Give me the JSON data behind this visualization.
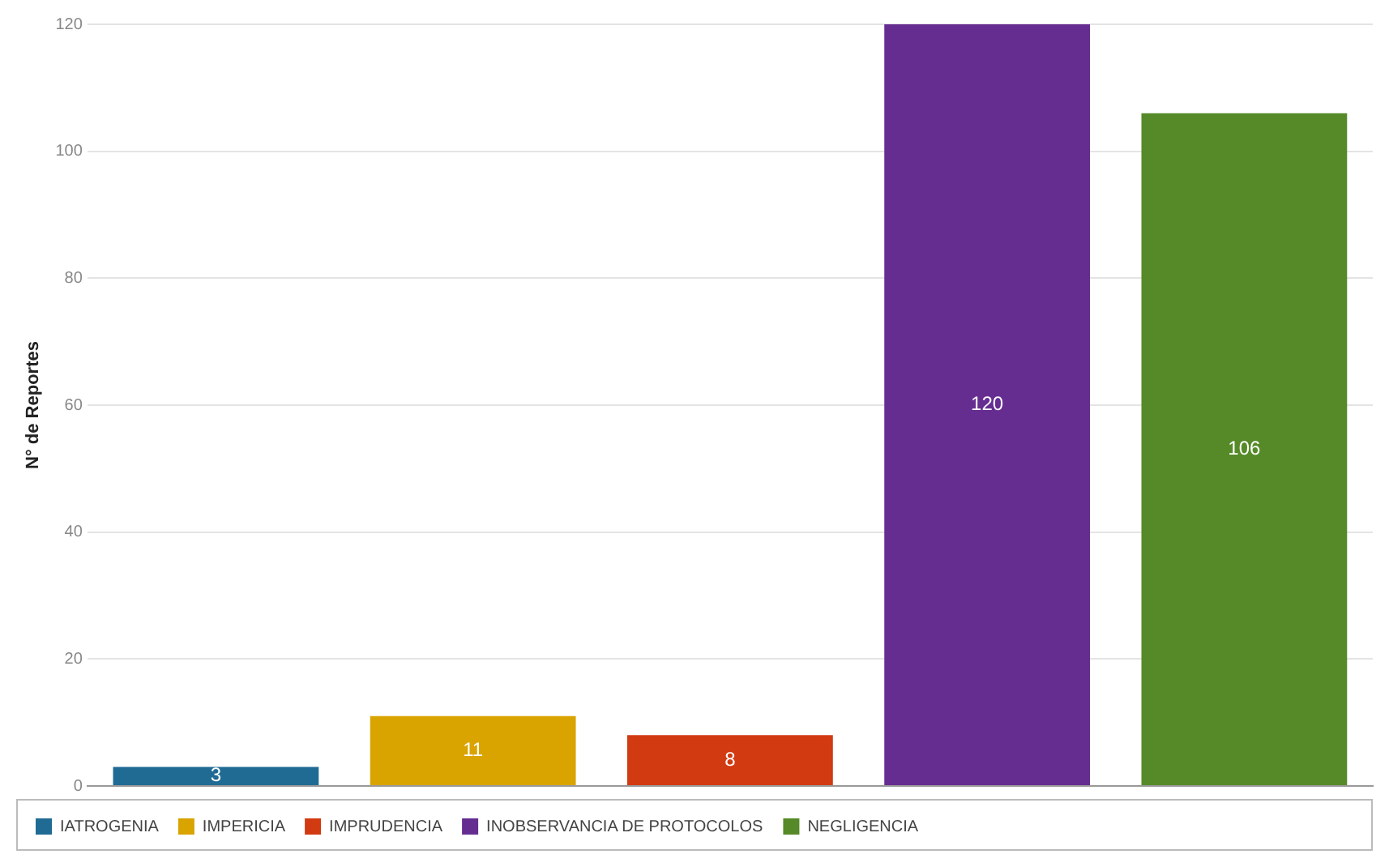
{
  "chart_data": {
    "type": "bar",
    "ylabel": "N° de Reportes",
    "categories": [
      null,
      null,
      null,
      null,
      null
    ],
    "series": [
      {
        "name": "IATROGENIA",
        "color": "#1f6b94",
        "values": [
          3,
          null,
          null,
          null,
          null
        ]
      },
      {
        "name": "IMPERICIA",
        "color": "#d9a300",
        "values": [
          null,
          11,
          null,
          null,
          null
        ]
      },
      {
        "name": "IMPRUDENCIA",
        "color": "#d23a12",
        "values": [
          null,
          null,
          8,
          null,
          null
        ]
      },
      {
        "name": "INOBSERVANCIA DE PROTOCOLOS",
        "color": "#662d91",
        "values": [
          null,
          null,
          null,
          120,
          null
        ]
      },
      {
        "name": "NEGLIGENCIA",
        "color": "#568a28",
        "values": [
          null,
          null,
          null,
          null,
          106
        ]
      }
    ],
    "ylim": [
      0,
      120
    ],
    "yticks": [
      0,
      20,
      40,
      60,
      80,
      100,
      120
    ],
    "grid": "y",
    "legend": "bottom",
    "data_labels": true
  }
}
